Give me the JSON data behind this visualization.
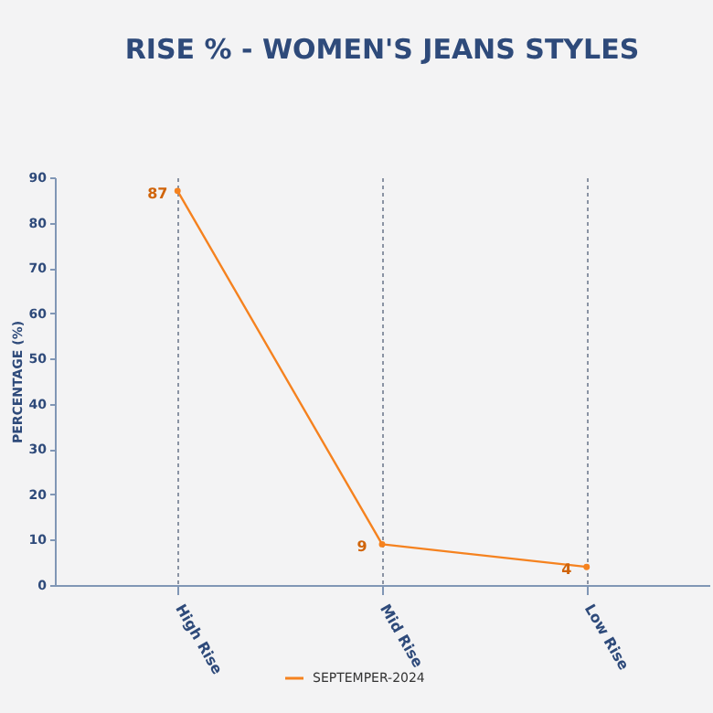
{
  "chart_data": {
    "type": "line",
    "title": "RISE % - WOMEN'S JEANS STYLES",
    "ylabel": "PERCENTAGE (%)",
    "categories": [
      "High Rise",
      "Mid Rise",
      "Low Rise"
    ],
    "series": [
      {
        "name": "SEPTEMPER-2024",
        "color": "#f5821f",
        "values": [
          87,
          9,
          4
        ]
      }
    ],
    "ylim": [
      0,
      90
    ],
    "yticks": [
      0,
      10,
      20,
      30,
      40,
      50,
      60,
      70,
      80,
      90
    ],
    "grid": "x",
    "legend": "bottom",
    "marker": "circle",
    "line_style": "solid",
    "data_labels": true
  }
}
